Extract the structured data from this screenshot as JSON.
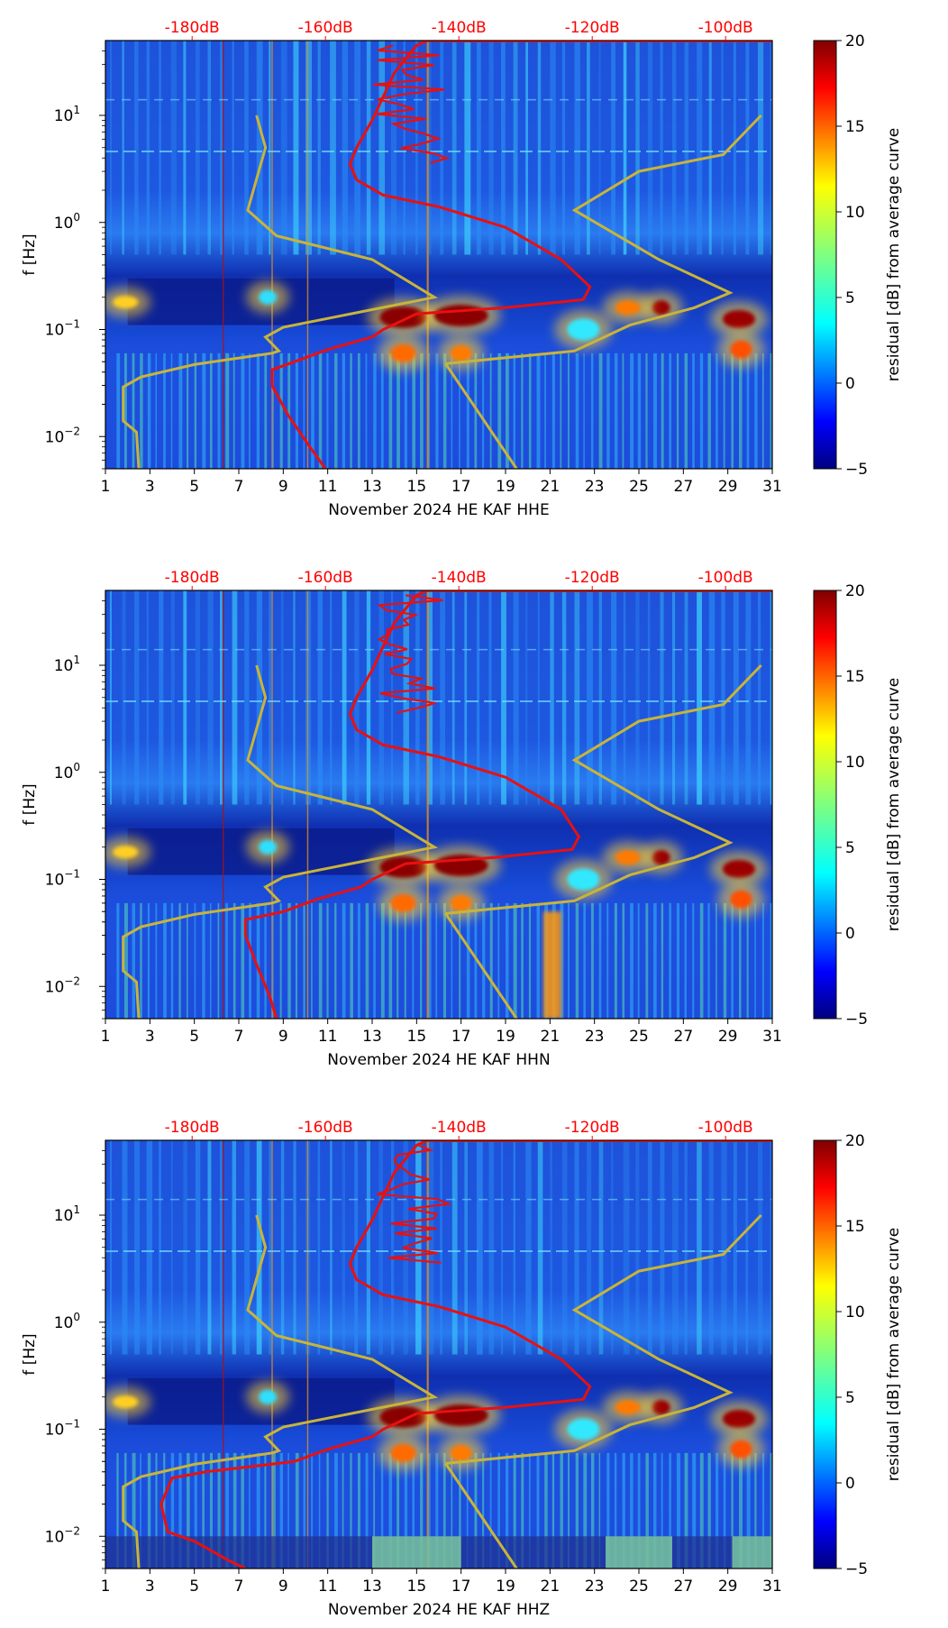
{
  "shared": {
    "x_ticks": [
      "1",
      "3",
      "5",
      "7",
      "9",
      "11",
      "13",
      "15",
      "17",
      "19",
      "21",
      "23",
      "25",
      "27",
      "29",
      "31"
    ],
    "y_ticks": [
      {
        "label": "10^1",
        "exp": 1
      },
      {
        "label": "10^0",
        "exp": 0
      },
      {
        "label": "10^−1",
        "exp": -1
      },
      {
        "label": "10^−2",
        "exp": -2
      }
    ],
    "db_ticks": [
      "-180dB",
      "-160dB",
      "-140dB",
      "-120dB",
      "-100dB"
    ],
    "colorbar_label": "residual [dB] from average curve",
    "colorbar_ticks": [
      "20",
      "15",
      "10",
      "5",
      "0",
      "−5"
    ],
    "colorbar_range": [
      -5,
      20
    ],
    "ylabel": "f [Hz]",
    "colors": {
      "psd_curve": "#e81010",
      "noise_model": "#c8b43a",
      "db_labels": "#ff0000"
    }
  },
  "chart_data": [
    {
      "type": "heatmap",
      "xlabel": "November 2024 HE KAF  HHE",
      "xlim": [
        1,
        31
      ],
      "ylim_hz": [
        0.005,
        50
      ],
      "x_ticks": [
        "1",
        "3",
        "5",
        "7",
        "9",
        "11",
        "13",
        "15",
        "17",
        "19",
        "21",
        "23",
        "25",
        "27",
        "29",
        "31"
      ],
      "db_axis": [
        "-180dB",
        "-160dB",
        "-140dB",
        "-120dB",
        "-100dB"
      ]
    },
    {
      "type": "heatmap",
      "xlabel": "November 2024 HE KAF  HHN",
      "xlim": [
        1,
        31
      ],
      "ylim_hz": [
        0.005,
        50
      ],
      "x_ticks": [
        "1",
        "3",
        "5",
        "7",
        "9",
        "11",
        "13",
        "15",
        "17",
        "19",
        "21",
        "23",
        "25",
        "27",
        "29",
        "31"
      ],
      "db_axis": [
        "-180dB",
        "-160dB",
        "-140dB",
        "-120dB",
        "-100dB"
      ]
    },
    {
      "type": "heatmap",
      "xlabel": "November 2024 HE KAF  HHZ",
      "xlim": [
        1,
        31
      ],
      "ylim_hz": [
        0.005,
        50
      ],
      "x_ticks": [
        "1",
        "3",
        "5",
        "7",
        "9",
        "11",
        "13",
        "15",
        "17",
        "19",
        "21",
        "23",
        "25",
        "27",
        "29",
        "31"
      ],
      "db_axis": [
        "-180dB",
        "-160dB",
        "-140dB",
        "-120dB",
        "-100dB"
      ]
    }
  ]
}
